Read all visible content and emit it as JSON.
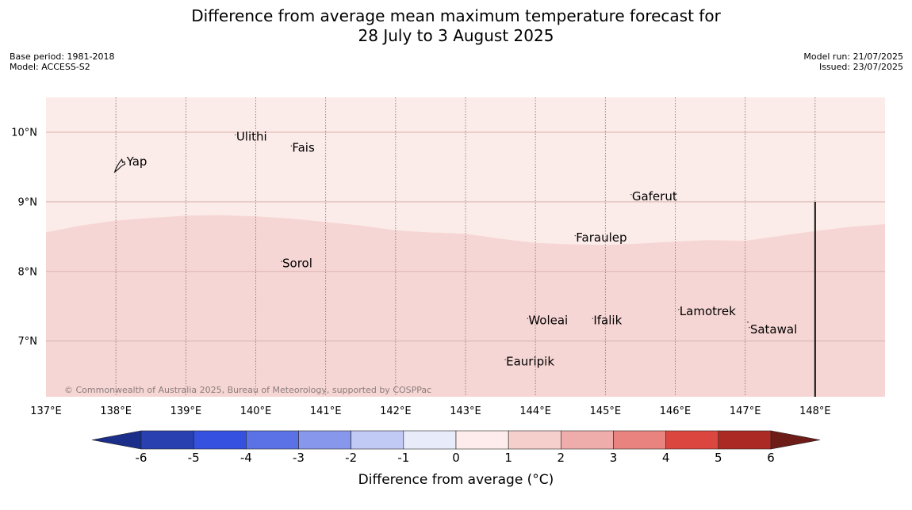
{
  "title_line1": "Difference from average mean maximum temperature forecast for",
  "title_line2": "28 July to 3 August 2025",
  "base_period": "Base period: 1981-2018",
  "model": "Model: ACCESS-S2",
  "model_run": "Model run: 21/07/2025",
  "issued": "Issued: 23/07/2025",
  "copyright": "© Commonwealth of Australia 2025, Bureau of Meteorology, supported by COSPPac",
  "map": {
    "lon_range": [
      137,
      149
    ],
    "lat_range": [
      6.2,
      10.5
    ],
    "lon_ticks": [
      {
        "value": 137,
        "label": "137°E"
      },
      {
        "value": 138,
        "label": "138°E"
      },
      {
        "value": 139,
        "label": "139°E"
      },
      {
        "value": 140,
        "label": "140°E"
      },
      {
        "value": 141,
        "label": "141°E"
      },
      {
        "value": 142,
        "label": "142°E"
      },
      {
        "value": 143,
        "label": "143°E"
      },
      {
        "value": 144,
        "label": "144°E"
      },
      {
        "value": 145,
        "label": "145°E"
      },
      {
        "value": 146,
        "label": "146°E"
      },
      {
        "value": 147,
        "label": "147°E"
      },
      {
        "value": 148,
        "label": "148°E"
      }
    ],
    "lat_ticks": [
      {
        "value": 10,
        "label": "10°N"
      },
      {
        "value": 9,
        "label": "9°N"
      },
      {
        "value": 8,
        "label": "8°N"
      },
      {
        "value": 7,
        "label": "7°N"
      }
    ],
    "boundary_line_lon": 148,
    "boundary_line_lat_top": 9,
    "band_boundary": [
      [
        137,
        8.56
      ],
      [
        137.5,
        8.66
      ],
      [
        138,
        8.73
      ],
      [
        138.5,
        8.77
      ],
      [
        139,
        8.8
      ],
      [
        139.5,
        8.81
      ],
      [
        140,
        8.79
      ],
      [
        140.5,
        8.76
      ],
      [
        141,
        8.71
      ],
      [
        141.5,
        8.66
      ],
      [
        142,
        8.59
      ],
      [
        142.5,
        8.56
      ],
      [
        143,
        8.54
      ],
      [
        143.5,
        8.47
      ],
      [
        144,
        8.41
      ],
      [
        144.5,
        8.39
      ],
      [
        145,
        8.38
      ],
      [
        145.5,
        8.4
      ],
      [
        146,
        8.43
      ],
      [
        146.5,
        8.45
      ],
      [
        147,
        8.44
      ],
      [
        147.5,
        8.51
      ],
      [
        148,
        8.58
      ],
      [
        148.5,
        8.64
      ],
      [
        149,
        8.68
      ]
    ],
    "band_upper_color": "#fbebe9",
    "band_lower_color": "#f6d6d4",
    "places": [
      {
        "name": "Ulithi",
        "lon": 139.72,
        "lat": 9.88
      },
      {
        "name": "Fais",
        "lon": 140.52,
        "lat": 9.72
      },
      {
        "name": "Yap",
        "lon": 138.13,
        "lat": 9.52
      },
      {
        "name": "Gaferut",
        "lon": 145.38,
        "lat": 9.02
      },
      {
        "name": "Faraulep",
        "lon": 144.58,
        "lat": 8.43
      },
      {
        "name": "Sorol",
        "lon": 140.38,
        "lat": 8.06
      },
      {
        "name": "Lamotrek",
        "lon": 146.06,
        "lat": 7.37
      },
      {
        "name": "Woleai",
        "lon": 143.9,
        "lat": 7.24
      },
      {
        "name": "Ifalik",
        "lon": 144.83,
        "lat": 7.24
      },
      {
        "name": "Satawal",
        "lon": 147.07,
        "lat": 7.11
      },
      {
        "name": "Eauripik",
        "lon": 143.58,
        "lat": 6.65
      }
    ]
  },
  "colorbar": {
    "title": "Difference from average (°C)",
    "ticks": [
      "-6",
      "-5",
      "-4",
      "-3",
      "-2",
      "-1",
      "0",
      "1",
      "2",
      "3",
      "4",
      "5",
      "6"
    ],
    "low_extend_color": "#1b2f8a",
    "high_extend_color": "#6e1c18",
    "colors": [
      "#2840b0",
      "#3451df",
      "#5a72e6",
      "#8797ec",
      "#c1c9f5",
      "#e8ebfa",
      "#fdeceb",
      "#f5cfcc",
      "#eeadaa",
      "#e8837f",
      "#db463e",
      "#ab2a24"
    ]
  }
}
